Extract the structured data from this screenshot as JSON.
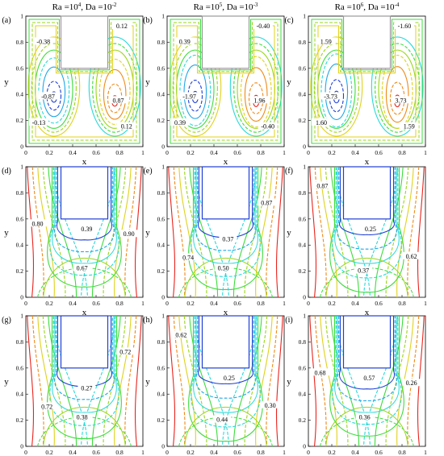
{
  "figure": {
    "column_titles": [
      {
        "ra_base": "Ra =10",
        "ra_exp": "4",
        "sep": ",   ",
        "da_base": "Da =10",
        "da_exp": "-2"
      },
      {
        "ra_base": "Ra =10",
        "ra_exp": "5",
        "sep": ",   ",
        "da_base": "Da =10",
        "da_exp": "-3"
      },
      {
        "ra_base": "Ra =10",
        "ra_exp": "6",
        "sep": ",   ",
        "da_base": "Da =10",
        "da_exp": "-4"
      }
    ],
    "panel_labels": [
      "(a)",
      "(b)",
      "(c)",
      "(d)",
      "(e)",
      "(f)",
      "(g)",
      "(h)",
      "(i)"
    ],
    "xlabel": "x",
    "ylabel": "y",
    "x_ticks": [
      "0",
      "0.2",
      "0.4",
      "0.6",
      "0.8",
      "1"
    ],
    "y_ticks": [
      "0",
      "0.2",
      "0.4",
      "0.6",
      "0.8",
      "1"
    ],
    "colors": {
      "blue": "#1f3fd6",
      "sky": "#1fa6e8",
      "cyan": "#28d9d9",
      "green": "#3ddc3d",
      "lime": "#9ad61a",
      "yellow": "#e0d21c",
      "orange": "#ef8a18",
      "red": "#e8231c"
    }
  },
  "chart_data": [
    {
      "panel": "(a)",
      "type": "contour",
      "field": "streamlines",
      "xlim": [
        0,
        1
      ],
      "ylim": [
        0,
        1
      ],
      "contour_labels": [
        "0.12",
        "-0.38",
        "-0.87",
        "0.87",
        "-0.13",
        "0.12"
      ]
    },
    {
      "panel": "(b)",
      "type": "contour",
      "field": "streamlines",
      "xlim": [
        0,
        1
      ],
      "ylim": [
        0,
        1
      ],
      "contour_labels": [
        "-0.40",
        "0.39",
        "-1.97",
        "1.96",
        "0.39",
        "-0.40"
      ]
    },
    {
      "panel": "(c)",
      "type": "contour",
      "field": "streamlines",
      "xlim": [
        0,
        1
      ],
      "ylim": [
        0,
        1
      ],
      "contour_labels": [
        "-1.60",
        "1.59",
        "-3.73",
        "3.73",
        "1.60",
        "1.59"
      ]
    },
    {
      "panel": "(d)",
      "type": "contour",
      "field": "isotherms",
      "xlim": [
        0,
        1
      ],
      "ylim": [
        0,
        1
      ],
      "contour_labels": [
        "0.80",
        "0.39",
        "0.90",
        "0.67"
      ]
    },
    {
      "panel": "(e)",
      "type": "contour",
      "field": "isotherms",
      "xlim": [
        0,
        1
      ],
      "ylim": [
        0,
        1
      ],
      "contour_labels": [
        "0.87",
        "0.37",
        "0.74",
        "0.50"
      ]
    },
    {
      "panel": "(f)",
      "type": "contour",
      "field": "isotherms",
      "xlim": [
        0,
        1
      ],
      "ylim": [
        0,
        1
      ],
      "contour_labels": [
        "0.87",
        "0.25",
        "0.62",
        "0.37"
      ]
    },
    {
      "panel": "(g)",
      "type": "contour",
      "field": "isotherms",
      "xlim": [
        0,
        1
      ],
      "ylim": [
        0,
        1
      ],
      "contour_labels": [
        "0.72",
        "0.27",
        "0.72",
        "0.38"
      ]
    },
    {
      "panel": "(h)",
      "type": "contour",
      "field": "isotherms",
      "xlim": [
        0,
        1
      ],
      "ylim": [
        0,
        1
      ],
      "contour_labels": [
        "0.62",
        "0.25",
        "0.30",
        "0.44"
      ]
    },
    {
      "panel": "(i)",
      "type": "contour",
      "field": "isotherms",
      "xlim": [
        0,
        1
      ],
      "ylim": [
        0,
        1
      ],
      "contour_labels": [
        "0.68",
        "0.57",
        "0.26",
        "0.36"
      ]
    }
  ]
}
